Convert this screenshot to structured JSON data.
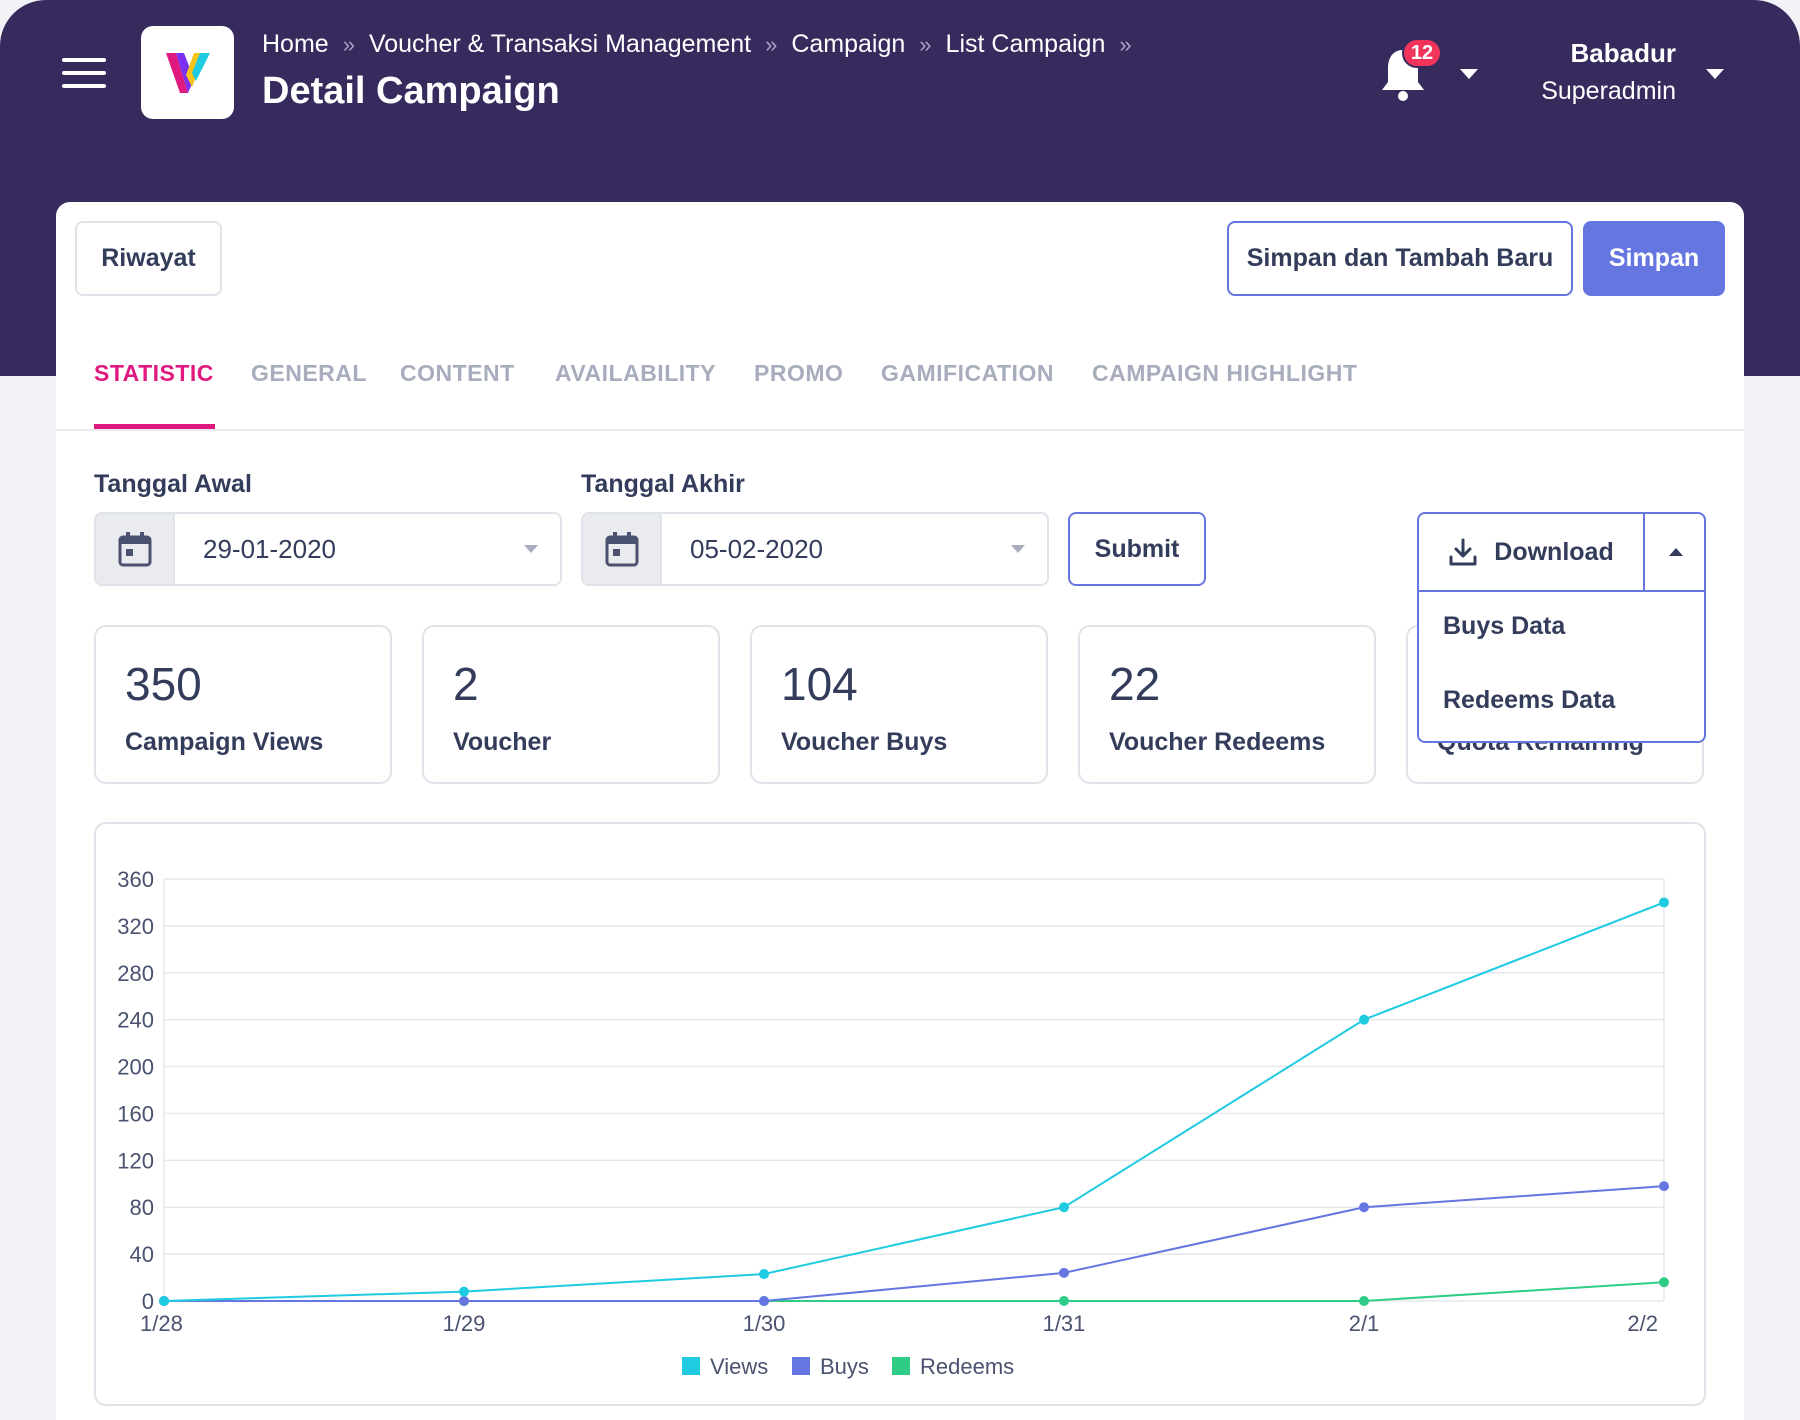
{
  "header": {
    "breadcrumbs": [
      "Home",
      "Voucher & Transaksi Management",
      "Campaign",
      "List Campaign"
    ],
    "breadcrumb_separator": "»",
    "page_title": "Detail Campaign",
    "notification_count": "12",
    "user": {
      "name": "Babadur",
      "role": "Superadmin"
    }
  },
  "actions": {
    "riwayat_label": "Riwayat",
    "save_and_add_label": "Simpan dan Tambah Baru",
    "save_label": "Simpan"
  },
  "tabs": [
    {
      "label": "STATISTIC",
      "active": true
    },
    {
      "label": "GENERAL",
      "active": false
    },
    {
      "label": "CONTENT",
      "active": false
    },
    {
      "label": "AVAILABILITY",
      "active": false
    },
    {
      "label": "PROMO",
      "active": false
    },
    {
      "label": "GAMIFICATION",
      "active": false
    },
    {
      "label": "CAMPAIGN HIGHLIGHT",
      "active": false
    }
  ],
  "filters": {
    "start_label": "Tanggal Awal",
    "start_value": "29-01-2020",
    "end_label": "Tanggal Akhir",
    "end_value": "05-02-2020",
    "submit_label": "Submit"
  },
  "download": {
    "label": "Download",
    "options": [
      "Buys Data",
      "Redeems Data"
    ]
  },
  "stats": [
    {
      "value": "350",
      "label": "Campaign Views"
    },
    {
      "value": "2",
      "label": "Voucher"
    },
    {
      "value": "104",
      "label": "Voucher Buys"
    },
    {
      "value": "22",
      "label": "Voucher Redeems"
    },
    {
      "value": "",
      "label": "Quota Remaining"
    }
  ],
  "colors": {
    "header_bg": "#372b5e",
    "primary": "#6676e0",
    "accent": "#e0197e",
    "badge": "#f2345b",
    "views": "#1ecbe1",
    "buys": "#6676e0",
    "redeems": "#2ecc85"
  },
  "chart_data": {
    "type": "line",
    "categories": [
      "1/28",
      "1/29",
      "1/30",
      "1/31",
      "2/1",
      "2/2"
    ],
    "ylim": [
      0,
      360
    ],
    "yticks": [
      0,
      40,
      80,
      120,
      160,
      200,
      240,
      280,
      320,
      360
    ],
    "grid": true,
    "legend_position": "bottom",
    "series": [
      {
        "name": "Views",
        "color": "#1ecbe1",
        "values": [
          0,
          8,
          23,
          80,
          240,
          340
        ]
      },
      {
        "name": "Buys",
        "color": "#6676e0",
        "values": [
          0,
          0,
          0,
          24,
          80,
          98
        ]
      },
      {
        "name": "Redeems",
        "color": "#2ecc85",
        "values": [
          0,
          0,
          0,
          0,
          0,
          16
        ]
      }
    ]
  }
}
